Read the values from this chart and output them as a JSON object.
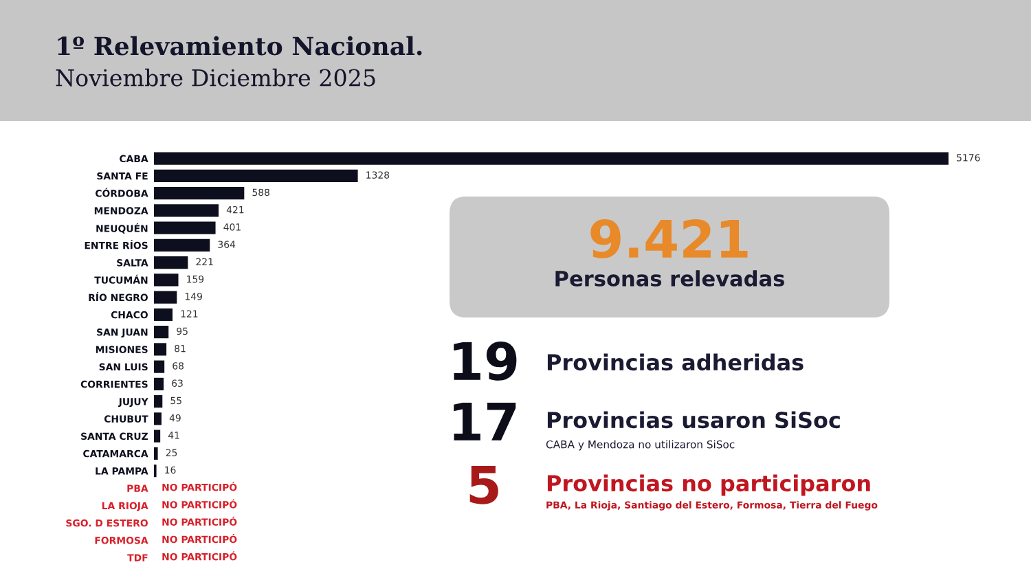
{
  "chart_data": [
    {
      "type": "bar",
      "orientation": "horizontal",
      "title": "1º Relevamiento Nacional.",
      "subtitle": "Noviembre Diciembre 2025",
      "categories": [
        "CABA",
        "SANTA FE",
        "CÓRDOBA",
        "MENDOZA",
        "NEUQUÉN",
        "ENTRE RÍOS",
        "SALTA",
        "TUCUMÁN",
        "RÍO NEGRO",
        "CHACO",
        "SAN JUAN",
        "MISIONES",
        "SAN LUIS",
        "CORRIENTES",
        "JUJUY",
        "CHUBUT",
        "SANTA CRUZ",
        "CATAMARCA",
        "LA PAMPA",
        "PBA",
        "LA RIOJA",
        "SGO. D ESTERO",
        "FORMOSA",
        "TDF"
      ],
      "values": [
        5176,
        1328,
        588,
        421,
        401,
        364,
        221,
        159,
        149,
        121,
        95,
        81,
        68,
        63,
        55,
        49,
        41,
        25,
        16,
        null,
        null,
        null,
        null,
        null
      ],
      "value_labels": [
        "5176",
        "1328",
        "588",
        "421",
        "401",
        "364",
        "221",
        "159",
        "149",
        "121",
        "95",
        "81",
        "68",
        "63",
        "55",
        "49",
        "41",
        "25",
        "16",
        "NO PARTICIPÓ",
        "NO PARTICIPÓ",
        "NO PARTICIPÓ",
        "NO PARTICIPÓ",
        "NO PARTICIPÓ"
      ],
      "colors": [
        "#0d0f1e",
        "#0d0f1e",
        "#0d0f1e",
        "#0d0f1e",
        "#0d0f1e",
        "#0d0f1e",
        "#0d0f1e",
        "#0d0f1e",
        "#0d0f1e",
        "#0d0f1e",
        "#0d0f1e",
        "#0d0f1e",
        "#0d0f1e",
        "#0d0f1e",
        "#0d0f1e",
        "#0d0f1e",
        "#0d0f1e",
        "#0d0f1e",
        "#0d0f1e",
        "#d8202a",
        "#d8202a",
        "#d8202a",
        "#d8202a",
        "#d8202a"
      ]
    },
    {
      "type": "other",
      "annotations": [
        "9.421",
        "Personas relevadas",
        "19",
        "Provincias adheridas",
        "17",
        "Provincias usaron SiSoc",
        "CABA y Mendoza no utilizaron SiSoc",
        "5",
        "Provincias no participaron",
        "PBA, La Rioja, Santiago del Estero, Formosa, Tierra del Fuego"
      ]
    }
  ]
}
